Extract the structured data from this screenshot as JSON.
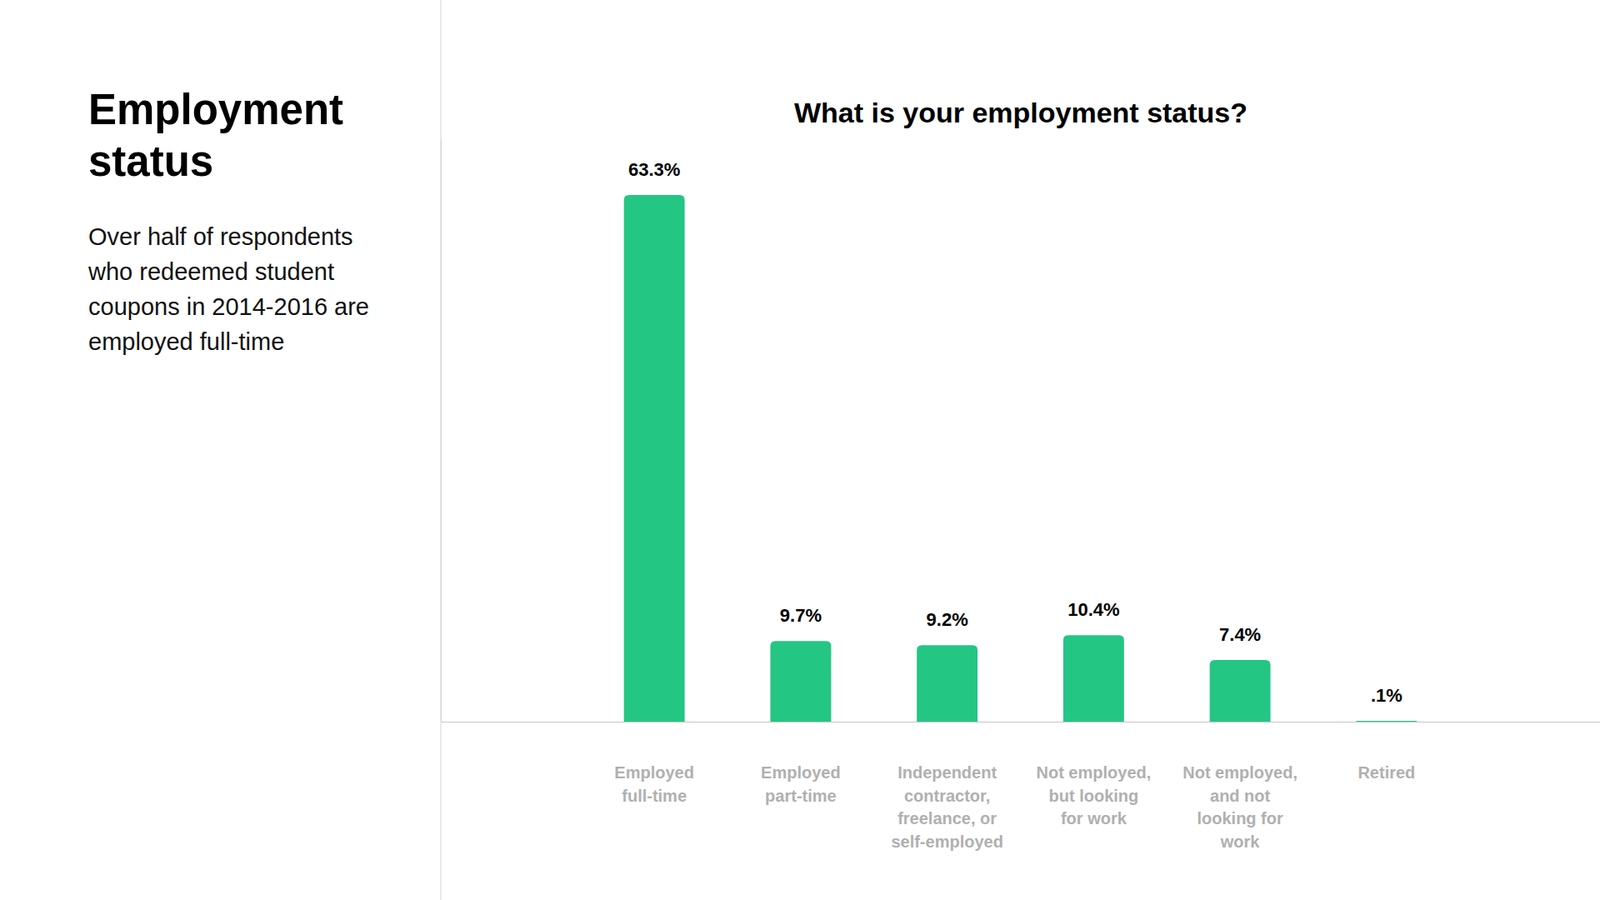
{
  "header": {
    "title": "Employment status",
    "text": "Over half of respondents who redeemed student coupons in 2014-2016 are employed full-time"
  },
  "chart_data": {
    "type": "bar",
    "title": "What is your employment status?",
    "categories": [
      "Employed full-time",
      "Employed part-time",
      "Independent contractor, freelance, or self-employed",
      "Not employed, but looking for work",
      "Not employed, and not looking for work",
      "Retired"
    ],
    "values": [
      63.3,
      9.7,
      9.2,
      10.4,
      7.4,
      0.1
    ],
    "value_labels": [
      "63.3%",
      "9.7%",
      "9.2%",
      "10.4%",
      "7.4%",
      ".1%"
    ],
    "color": "#24c684",
    "ylim": [
      0,
      70
    ],
    "yticks": [],
    "tick_labels": "x",
    "data_labels": true,
    "grid": false
  }
}
